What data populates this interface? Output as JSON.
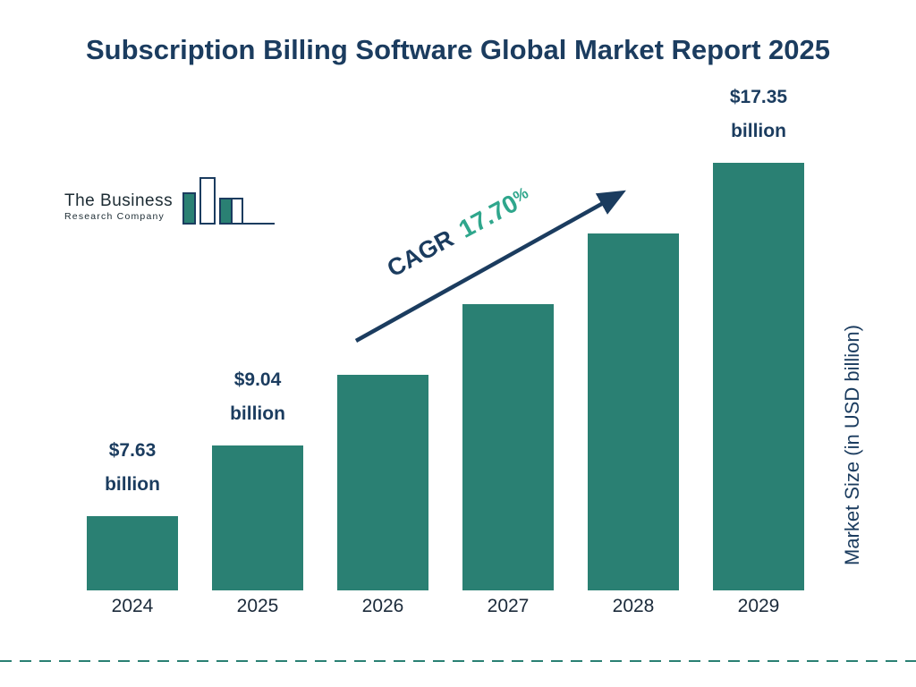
{
  "title": "Subscription Billing Software Global Market Report 2025",
  "logo": {
    "line1": "The Business",
    "line2": "Research Company"
  },
  "cagr": {
    "label": "CAGR",
    "value": "17.70",
    "suffix": "%"
  },
  "y_axis_label": "Market Size (in USD billion)",
  "colors": {
    "bar": "#2A8073",
    "navy": "#1B3C5F",
    "accent": "#2FA68C"
  },
  "chart_data": {
    "type": "bar",
    "title": "Subscription Billing Software Global Market Report 2025",
    "categories": [
      "2024",
      "2025",
      "2026",
      "2027",
      "2028",
      "2029"
    ],
    "values": [
      7.63,
      9.04,
      10.64,
      12.52,
      14.74,
      17.35
    ],
    "unit": "USD billion",
    "value_labels": [
      {
        "index": 0,
        "amount": "$7.63",
        "unit": "billion"
      },
      {
        "index": 1,
        "amount": "$9.04",
        "unit": "billion"
      },
      {
        "index": 5,
        "amount": "$17.35",
        "unit": "billion"
      }
    ],
    "xlabel": "",
    "ylabel": "Market Size (in USD billion)",
    "ylim": [
      0,
      18
    ],
    "grid": false,
    "legend": false,
    "annotations": [
      "CAGR 17.70%"
    ]
  }
}
